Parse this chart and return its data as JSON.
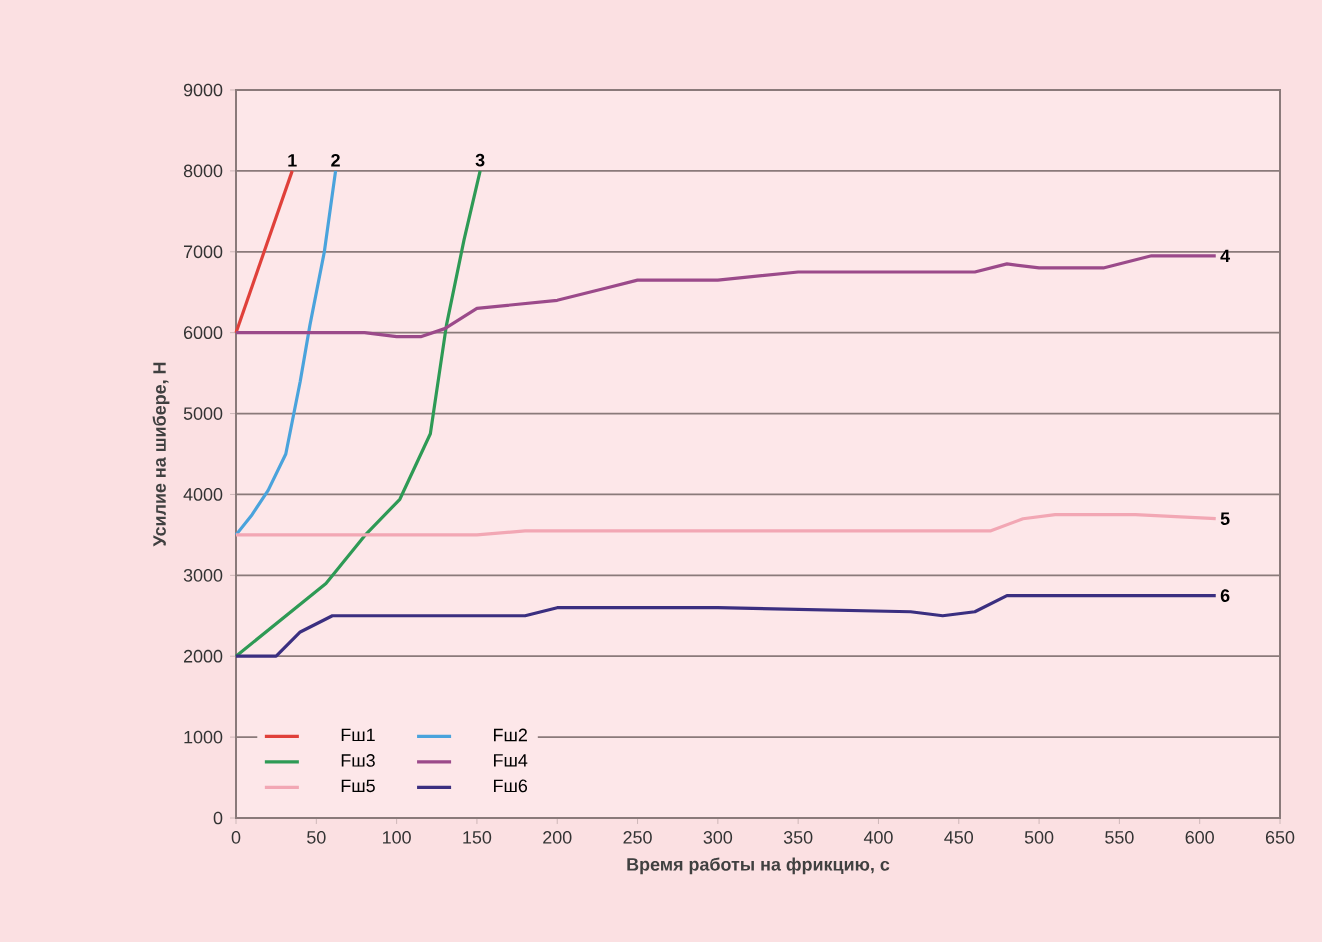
{
  "chart_data": {
    "type": "line",
    "xlabel": "Время работы на фрикцию, с",
    "ylabel": "Усилие на шибере, Н",
    "xlim": [
      0,
      650
    ],
    "xticks": [
      0,
      50,
      100,
      150,
      200,
      250,
      300,
      350,
      400,
      450,
      500,
      550,
      600,
      650
    ],
    "ylim": [
      0,
      9000
    ],
    "yticks": [
      0,
      1000,
      2000,
      3000,
      4000,
      5000,
      6000,
      7000,
      8000,
      9000
    ],
    "grid": "y",
    "legend": "bottom left",
    "marker": "none",
    "line_style": "solid",
    "series": [
      {
        "name": "Fш1",
        "color": "#e0403a",
        "x": [
          0,
          35
        ],
        "values": [
          6000,
          8000
        ]
      },
      {
        "name": "Fш2",
        "color": "#4aa3dc",
        "x": [
          0,
          10,
          20,
          31,
          40,
          46,
          55,
          62
        ],
        "values": [
          3500,
          3750,
          4050,
          4500,
          5400,
          6090,
          7000,
          8000
        ]
      },
      {
        "name": "Fш3",
        "color": "#2e9a55",
        "x": [
          0,
          56,
          81,
          102,
          121,
          131,
          142,
          152
        ],
        "values": [
          2000,
          2900,
          3510,
          3940,
          4750,
          6090,
          7150,
          8000
        ]
      },
      {
        "name": "Fш4",
        "color": "#9b4a8a",
        "x": [
          0,
          80,
          100,
          115,
          130,
          150,
          200,
          230,
          250,
          300,
          350,
          400,
          460,
          480,
          500,
          540,
          570,
          610
        ],
        "values": [
          6000,
          6000,
          5950,
          5950,
          6050,
          6300,
          6400,
          6550,
          6650,
          6650,
          6750,
          6750,
          6750,
          6850,
          6800,
          6800,
          6950,
          6950
        ]
      },
      {
        "name": "Fш5",
        "color": "#f2a7b4",
        "x": [
          0,
          150,
          180,
          470,
          490,
          510,
          560,
          610
        ],
        "values": [
          3500,
          3500,
          3550,
          3550,
          3700,
          3750,
          3750,
          3700
        ]
      },
      {
        "name": "Fш6",
        "color": "#3b2f80",
        "x": [
          0,
          25,
          40,
          60,
          80,
          180,
          200,
          300,
          420,
          440,
          460,
          480,
          610
        ],
        "values": [
          2000,
          2000,
          2300,
          2500,
          2500,
          2500,
          2600,
          2600,
          2550,
          2500,
          2550,
          2750,
          2750
        ]
      }
    ],
    "annotations": [
      {
        "text": "1",
        "x": 35,
        "y": 8000
      },
      {
        "text": "2",
        "x": 62,
        "y": 8000
      },
      {
        "text": "3",
        "x": 152,
        "y": 8000
      },
      {
        "text": "4",
        "x": 610,
        "y": 6950
      },
      {
        "text": "5",
        "x": 610,
        "y": 3700
      },
      {
        "text": "6",
        "x": 610,
        "y": 2750
      }
    ]
  }
}
